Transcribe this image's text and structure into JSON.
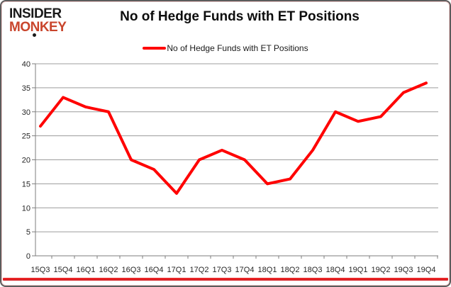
{
  "brand": {
    "line1": "INSIDER",
    "line2": "MONKEY",
    "color": "#c9452c"
  },
  "title": "No of Hedge Funds with ET Positions",
  "legend": {
    "label": "No of Hedge Funds with ET Positions",
    "line_color": "#ff0000"
  },
  "chart_data": {
    "type": "line",
    "categories": [
      "15Q3",
      "15Q4",
      "16Q1",
      "16Q2",
      "16Q3",
      "16Q4",
      "17Q1",
      "17Q2",
      "17Q3",
      "17Q4",
      "18Q1",
      "18Q2",
      "18Q3",
      "18Q4",
      "19Q1",
      "19Q2",
      "19Q3",
      "19Q4"
    ],
    "series": [
      {
        "name": "No of Hedge Funds with ET Positions",
        "color": "#ff0000",
        "values": [
          27,
          33,
          31,
          30,
          20,
          18,
          13,
          20,
          22,
          20,
          15,
          16,
          22,
          30,
          28,
          29,
          34,
          36
        ]
      }
    ],
    "title": "No of Hedge Funds with ET Positions",
    "xlabel": "",
    "ylabel": "",
    "ylim": [
      0,
      40
    ],
    "ytick_step": 5,
    "grid": true,
    "legend_position": "top-center"
  },
  "colors": {
    "line": "#ff0000",
    "accent_bar": "#e5252b",
    "gridline": "#9c9c9c",
    "axis": "#7d7d7d",
    "tick_label": "#262626",
    "brand_red": "#c9452c",
    "title_text": "#0d0d0d"
  }
}
